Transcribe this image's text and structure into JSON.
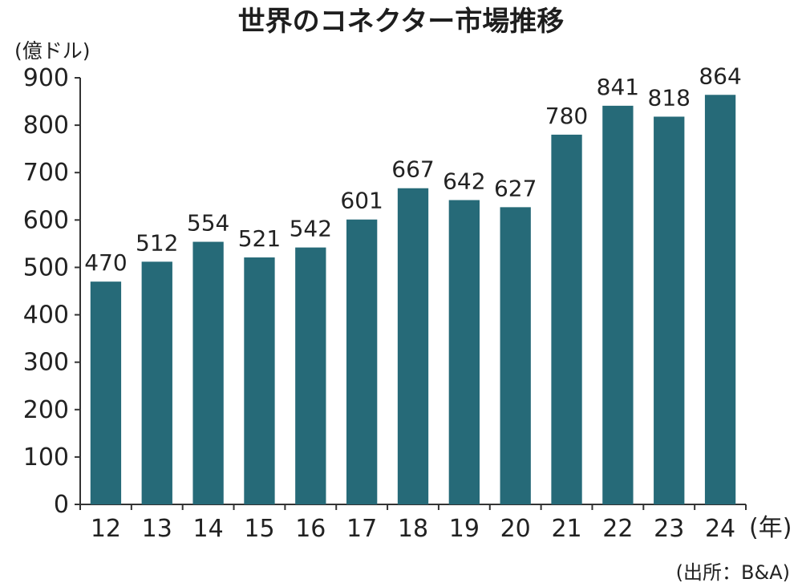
{
  "chart_data": {
    "type": "bar",
    "title": "世界のコネクター市場推移",
    "ylabel": "(億ドル)",
    "xlabel": "(年)",
    "source": "(出所：B&A)",
    "ylim": [
      0,
      900
    ],
    "yticks": [
      0,
      100,
      200,
      300,
      400,
      500,
      600,
      700,
      800,
      900
    ],
    "categories": [
      "12",
      "13",
      "14",
      "15",
      "16",
      "17",
      "18",
      "19",
      "20",
      "21",
      "22",
      "23",
      "24"
    ],
    "values": [
      470,
      512,
      554,
      521,
      542,
      601,
      667,
      642,
      627,
      780,
      841,
      818,
      864
    ],
    "data_labels": [
      "470",
      "512",
      "554",
      "521",
      "542",
      "601",
      "667",
      "642",
      "627",
      "780",
      "841",
      "818",
      "864"
    ],
    "bar_color": "#266a78",
    "grid": false
  }
}
